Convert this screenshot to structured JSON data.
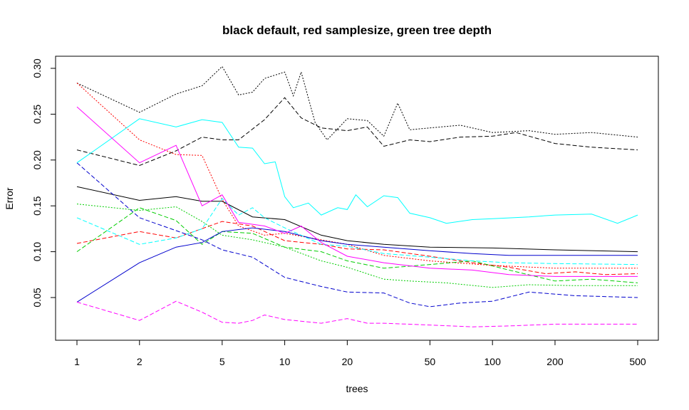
{
  "chart_data": {
    "type": "line",
    "title": "black default, red samplesize, green tree depth",
    "xlabel": "trees",
    "ylabel": "Error",
    "x_scale": "log",
    "xlim": [
      1,
      500
    ],
    "ylim": [
      0.01,
      0.31
    ],
    "x_ticks": [
      1,
      2,
      5,
      10,
      20,
      50,
      100,
      200,
      500
    ],
    "x_tick_labels": [
      "1",
      "2",
      "5",
      "10",
      "20",
      "50",
      "100",
      "200",
      "500"
    ],
    "y_ticks": [
      0.05,
      0.1,
      0.15,
      0.2,
      0.25,
      0.3
    ],
    "y_tick_labels": [
      "0.05",
      "0.10",
      "0.15",
      "0.20",
      "0.25",
      "0.30"
    ],
    "grid": false,
    "series": [
      {
        "color": "#000000",
        "dash": "solid",
        "points": [
          [
            1,
            0.171
          ],
          [
            2,
            0.156
          ],
          [
            3,
            0.16
          ],
          [
            4,
            0.155
          ],
          [
            5,
            0.155
          ],
          [
            7,
            0.138
          ],
          [
            10,
            0.135
          ],
          [
            15,
            0.118
          ],
          [
            20,
            0.112
          ],
          [
            30,
            0.108
          ],
          [
            50,
            0.105
          ],
          [
            100,
            0.104
          ],
          [
            200,
            0.102
          ],
          [
            500,
            0.1
          ]
        ]
      },
      {
        "color": "#000000",
        "dash": "dashed",
        "points": [
          [
            1,
            0.211
          ],
          [
            2,
            0.194
          ],
          [
            3,
            0.21
          ],
          [
            4,
            0.225
          ],
          [
            5,
            0.222
          ],
          [
            6,
            0.222
          ],
          [
            8,
            0.244
          ],
          [
            10,
            0.268
          ],
          [
            12,
            0.246
          ],
          [
            15,
            0.235
          ],
          [
            20,
            0.232
          ],
          [
            25,
            0.236
          ],
          [
            30,
            0.215
          ],
          [
            40,
            0.222
          ],
          [
            50,
            0.22
          ],
          [
            70,
            0.225
          ],
          [
            100,
            0.226
          ],
          [
            130,
            0.23
          ],
          [
            200,
            0.218
          ],
          [
            300,
            0.214
          ],
          [
            500,
            0.211
          ]
        ]
      },
      {
        "color": "#000000",
        "dash": "dotted",
        "points": [
          [
            1,
            0.284
          ],
          [
            2,
            0.252
          ],
          [
            3,
            0.272
          ],
          [
            4,
            0.281
          ],
          [
            5,
            0.302
          ],
          [
            6,
            0.271
          ],
          [
            7,
            0.274
          ],
          [
            8,
            0.289
          ],
          [
            10,
            0.296
          ],
          [
            11,
            0.27
          ],
          [
            12,
            0.296
          ],
          [
            14,
            0.241
          ],
          [
            16,
            0.222
          ],
          [
            20,
            0.245
          ],
          [
            25,
            0.243
          ],
          [
            30,
            0.226
          ],
          [
            35,
            0.262
          ],
          [
            40,
            0.233
          ],
          [
            50,
            0.235
          ],
          [
            70,
            0.238
          ],
          [
            100,
            0.23
          ],
          [
            150,
            0.232
          ],
          [
            200,
            0.228
          ],
          [
            300,
            0.23
          ],
          [
            500,
            0.225
          ]
        ]
      },
      {
        "color": "#FF0000",
        "dash": "dashed",
        "points": [
          [
            1,
            0.109
          ],
          [
            2,
            0.122
          ],
          [
            3,
            0.115
          ],
          [
            5,
            0.133
          ],
          [
            7,
            0.128
          ],
          [
            10,
            0.112
          ],
          [
            15,
            0.108
          ],
          [
            20,
            0.103
          ],
          [
            30,
            0.102
          ],
          [
            50,
            0.095
          ],
          [
            80,
            0.088
          ],
          [
            120,
            0.083
          ],
          [
            180,
            0.076
          ],
          [
            250,
            0.078
          ],
          [
            350,
            0.075
          ],
          [
            500,
            0.076
          ]
        ]
      },
      {
        "color": "#FF0000",
        "dash": "dotted",
        "points": [
          [
            1,
            0.284
          ],
          [
            2,
            0.222
          ],
          [
            3,
            0.206
          ],
          [
            4,
            0.205
          ],
          [
            5,
            0.157
          ],
          [
            6,
            0.128
          ],
          [
            8,
            0.118
          ],
          [
            10,
            0.12
          ],
          [
            15,
            0.113
          ],
          [
            20,
            0.108
          ],
          [
            30,
            0.096
          ],
          [
            50,
            0.09
          ],
          [
            100,
            0.085
          ],
          [
            200,
            0.082
          ],
          [
            500,
            0.082
          ]
        ]
      },
      {
        "color": "#00CD00",
        "dash": "dashed",
        "points": [
          [
            1,
            0.1
          ],
          [
            2,
            0.148
          ],
          [
            3,
            0.134
          ],
          [
            4,
            0.108
          ],
          [
            5,
            0.122
          ],
          [
            7,
            0.12
          ],
          [
            10,
            0.105
          ],
          [
            15,
            0.1
          ],
          [
            20,
            0.09
          ],
          [
            30,
            0.082
          ],
          [
            50,
            0.086
          ],
          [
            80,
            0.09
          ],
          [
            120,
            0.08
          ],
          [
            200,
            0.068
          ],
          [
            300,
            0.07
          ],
          [
            500,
            0.066
          ]
        ]
      },
      {
        "color": "#00CD00",
        "dash": "dotted",
        "points": [
          [
            1,
            0.152
          ],
          [
            2,
            0.145
          ],
          [
            3,
            0.149
          ],
          [
            4,
            0.133
          ],
          [
            5,
            0.118
          ],
          [
            7,
            0.113
          ],
          [
            10,
            0.105
          ],
          [
            15,
            0.09
          ],
          [
            20,
            0.083
          ],
          [
            30,
            0.07
          ],
          [
            40,
            0.068
          ],
          [
            60,
            0.066
          ],
          [
            100,
            0.061
          ],
          [
            150,
            0.064
          ],
          [
            250,
            0.063
          ],
          [
            500,
            0.063
          ]
        ]
      },
      {
        "color": "#0000CD",
        "dash": "solid",
        "points": [
          [
            1,
            0.045
          ],
          [
            2,
            0.088
          ],
          [
            3,
            0.105
          ],
          [
            4,
            0.11
          ],
          [
            5,
            0.122
          ],
          [
            7,
            0.126
          ],
          [
            10,
            0.122
          ],
          [
            15,
            0.112
          ],
          [
            20,
            0.108
          ],
          [
            30,
            0.105
          ],
          [
            50,
            0.101
          ],
          [
            80,
            0.098
          ],
          [
            120,
            0.096
          ],
          [
            200,
            0.096
          ],
          [
            500,
            0.096
          ]
        ]
      },
      {
        "color": "#0000CD",
        "dash": "dashed",
        "points": [
          [
            1,
            0.197
          ],
          [
            2,
            0.137
          ],
          [
            3,
            0.123
          ],
          [
            4,
            0.113
          ],
          [
            5,
            0.102
          ],
          [
            7,
            0.094
          ],
          [
            10,
            0.072
          ],
          [
            15,
            0.062
          ],
          [
            20,
            0.056
          ],
          [
            30,
            0.055
          ],
          [
            40,
            0.044
          ],
          [
            50,
            0.04
          ],
          [
            70,
            0.044
          ],
          [
            100,
            0.046
          ],
          [
            150,
            0.056
          ],
          [
            250,
            0.052
          ],
          [
            500,
            0.05
          ]
        ]
      },
      {
        "color": "#00FFFF",
        "dash": "solid",
        "points": [
          [
            1,
            0.197
          ],
          [
            2,
            0.245
          ],
          [
            3,
            0.236
          ],
          [
            4,
            0.244
          ],
          [
            5,
            0.241
          ],
          [
            6,
            0.214
          ],
          [
            7,
            0.213
          ],
          [
            8,
            0.196
          ],
          [
            9,
            0.198
          ],
          [
            10,
            0.16
          ],
          [
            11,
            0.148
          ],
          [
            13,
            0.153
          ],
          [
            15,
            0.14
          ],
          [
            18,
            0.148
          ],
          [
            20,
            0.146
          ],
          [
            22,
            0.162
          ],
          [
            25,
            0.149
          ],
          [
            30,
            0.161
          ],
          [
            35,
            0.159
          ],
          [
            40,
            0.142
          ],
          [
            50,
            0.137
          ],
          [
            60,
            0.131
          ],
          [
            80,
            0.135
          ],
          [
            100,
            0.136
          ],
          [
            150,
            0.138
          ],
          [
            200,
            0.14
          ],
          [
            300,
            0.141
          ],
          [
            400,
            0.131
          ],
          [
            500,
            0.14
          ]
        ]
      },
      {
        "color": "#00FFFF",
        "dash": "dashed",
        "points": [
          [
            1,
            0.137
          ],
          [
            2,
            0.108
          ],
          [
            3,
            0.115
          ],
          [
            4,
            0.125
          ],
          [
            5,
            0.158
          ],
          [
            6,
            0.14
          ],
          [
            7,
            0.148
          ],
          [
            8,
            0.137
          ],
          [
            10,
            0.126
          ],
          [
            15,
            0.108
          ],
          [
            20,
            0.106
          ],
          [
            30,
            0.098
          ],
          [
            50,
            0.094
          ],
          [
            80,
            0.09
          ],
          [
            120,
            0.088
          ],
          [
            200,
            0.087
          ],
          [
            500,
            0.086
          ]
        ]
      },
      {
        "color": "#FF00FF",
        "dash": "solid",
        "points": [
          [
            1,
            0.258
          ],
          [
            2,
            0.197
          ],
          [
            3,
            0.216
          ],
          [
            4,
            0.15
          ],
          [
            5,
            0.162
          ],
          [
            6,
            0.132
          ],
          [
            8,
            0.128
          ],
          [
            10,
            0.12
          ],
          [
            12,
            0.128
          ],
          [
            15,
            0.11
          ],
          [
            20,
            0.095
          ],
          [
            30,
            0.088
          ],
          [
            50,
            0.082
          ],
          [
            80,
            0.08
          ],
          [
            120,
            0.075
          ],
          [
            200,
            0.073
          ],
          [
            500,
            0.073
          ]
        ]
      },
      {
        "color": "#FF00FF",
        "dash": "dashed",
        "points": [
          [
            1,
            0.045
          ],
          [
            2,
            0.025
          ],
          [
            3,
            0.046
          ],
          [
            4,
            0.034
          ],
          [
            5,
            0.023
          ],
          [
            6,
            0.022
          ],
          [
            7,
            0.025
          ],
          [
            8,
            0.031
          ],
          [
            10,
            0.026
          ],
          [
            15,
            0.022
          ],
          [
            20,
            0.027
          ],
          [
            25,
            0.022
          ],
          [
            30,
            0.022
          ],
          [
            50,
            0.02
          ],
          [
            80,
            0.018
          ],
          [
            120,
            0.019
          ],
          [
            200,
            0.021
          ],
          [
            500,
            0.021
          ]
        ]
      }
    ]
  }
}
